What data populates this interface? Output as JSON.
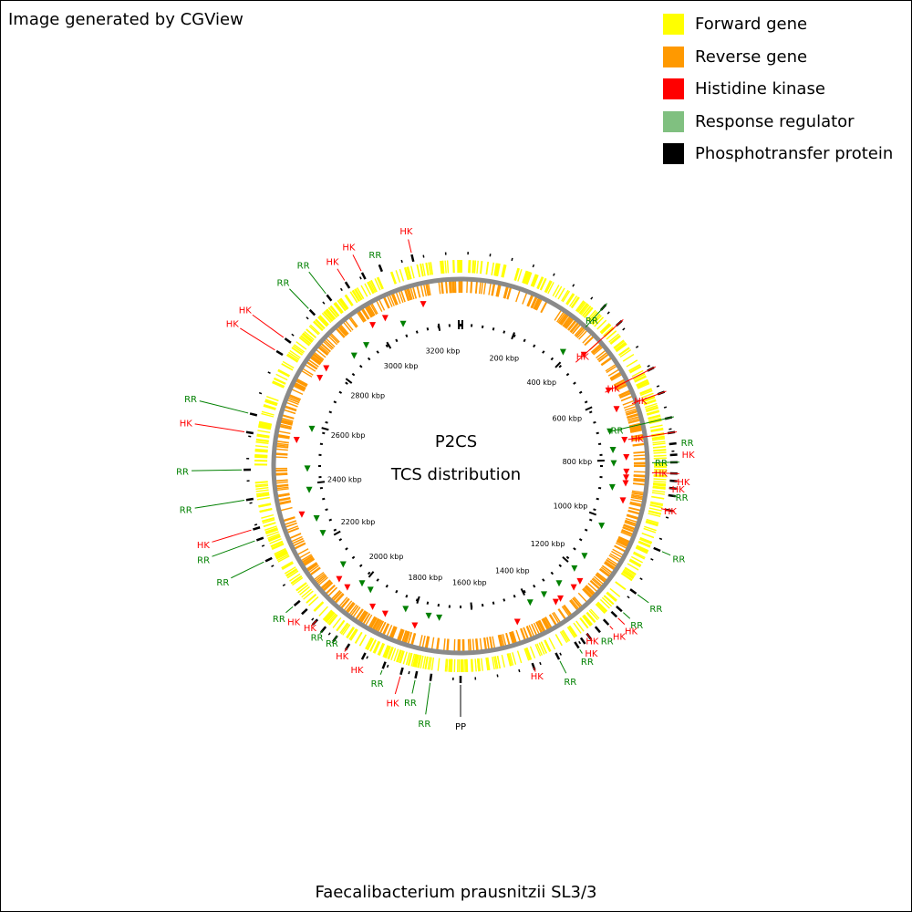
{
  "header": {
    "credit": "Image generated by CGView"
  },
  "footer": {
    "organism": "Faecalibacterium prausnitzii SL3/3"
  },
  "center": {
    "line1": "P2CS",
    "line2": "TCS distribution"
  },
  "legend": [
    {
      "label": "Forward gene",
      "color": "#ffff00",
      "key": "forward"
    },
    {
      "label": "Reverse gene",
      "color": "#ff9900",
      "key": "reverse"
    },
    {
      "label": "Histidine kinase",
      "color": "#ff0000",
      "key": "hk"
    },
    {
      "label": "Response regulator",
      "color": "#80c080",
      "key": "rr"
    },
    {
      "label": "Phosphotransfer protein",
      "color": "#000000",
      "key": "pp"
    }
  ],
  "label_colors": {
    "HK": "#ff0000",
    "RR": "#008000",
    "PP": "#000000"
  },
  "genome": {
    "length_kbp": 3280,
    "ticks": [
      {
        "kbp": 200,
        "label": "200 kbp"
      },
      {
        "kbp": 400,
        "label": "400 kbp"
      },
      {
        "kbp": 600,
        "label": "600 kbp"
      },
      {
        "kbp": 800,
        "label": "800 kbp"
      },
      {
        "kbp": 1000,
        "label": "1000 kbp"
      },
      {
        "kbp": 1200,
        "label": "1200 kbp"
      },
      {
        "kbp": 1400,
        "label": "1400 kbp"
      },
      {
        "kbp": 1600,
        "label": "1600 kbp"
      },
      {
        "kbp": 1800,
        "label": "1800 kbp"
      },
      {
        "kbp": 2000,
        "label": "2000 kbp"
      },
      {
        "kbp": 2200,
        "label": "2200 kbp"
      },
      {
        "kbp": 2400,
        "label": "2400 kbp"
      },
      {
        "kbp": 2600,
        "label": "2600 kbp"
      },
      {
        "kbp": 2800,
        "label": "2800 kbp"
      },
      {
        "kbp": 3000,
        "label": "3000 kbp"
      },
      {
        "kbp": 3200,
        "label": "3200 kbp"
      }
    ]
  },
  "features": [
    {
      "type": "RR",
      "label": "RR"
    },
    {
      "type": "HK",
      "label": "HK"
    },
    {
      "type": "HK",
      "label": "HK"
    },
    {
      "type": "HK",
      "label": "HK"
    },
    {
      "type": "RR",
      "label": "RR"
    },
    {
      "type": "HK",
      "label": "HK"
    },
    {
      "type": "RR",
      "label": "RR"
    },
    {
      "type": "HK",
      "label": "HK"
    },
    {
      "type": "RR",
      "label": "RR"
    },
    {
      "type": "HK",
      "label": "HK"
    },
    {
      "type": "HK",
      "label": "HK"
    },
    {
      "type": "HK",
      "label": "HK"
    },
    {
      "type": "RR",
      "label": "RR"
    },
    {
      "type": "HK",
      "label": "HK"
    },
    {
      "type": "RR",
      "label": "RR"
    },
    {
      "type": "RR",
      "label": "RR"
    },
    {
      "type": "RR",
      "label": "RR"
    },
    {
      "type": "HK",
      "label": "HK"
    },
    {
      "type": "HK",
      "label": "HK"
    },
    {
      "type": "RR",
      "label": "RR"
    },
    {
      "type": "HK",
      "label": "HK"
    },
    {
      "type": "HK",
      "label": "HK"
    },
    {
      "type": "RR",
      "label": "RR"
    },
    {
      "type": "RR",
      "label": "RR"
    },
    {
      "type": "HK",
      "label": "HK"
    },
    {
      "type": "PP",
      "label": "PP"
    },
    {
      "type": "RR",
      "label": "RR"
    },
    {
      "type": "RR",
      "label": "RR"
    },
    {
      "type": "HK",
      "label": "HK"
    },
    {
      "type": "RR",
      "label": "RR"
    },
    {
      "type": "HK",
      "label": "HK"
    },
    {
      "type": "HK",
      "label": "HK"
    },
    {
      "type": "RR",
      "label": "RR"
    },
    {
      "type": "RR",
      "label": "RR"
    },
    {
      "type": "HK",
      "label": "HK"
    },
    {
      "type": "HK",
      "label": "HK"
    },
    {
      "type": "RR",
      "label": "RR"
    },
    {
      "type": "RR",
      "label": "RR"
    },
    {
      "type": "RR",
      "label": "RR"
    },
    {
      "type": "HK",
      "label": "HK"
    },
    {
      "type": "RR",
      "label": "RR"
    },
    {
      "type": "RR",
      "label": "RR"
    },
    {
      "type": "HK",
      "label": "HK"
    },
    {
      "type": "RR",
      "label": "RR"
    },
    {
      "type": "HK",
      "label": "HK"
    },
    {
      "type": "HK",
      "label": "HK"
    },
    {
      "type": "RR",
      "label": "RR"
    },
    {
      "type": "RR",
      "label": "RR"
    },
    {
      "type": "HK",
      "label": "HK"
    },
    {
      "type": "HK",
      "label": "HK"
    },
    {
      "type": "RR",
      "label": "RR"
    },
    {
      "type": "HK",
      "label": "HK"
    }
  ]
}
